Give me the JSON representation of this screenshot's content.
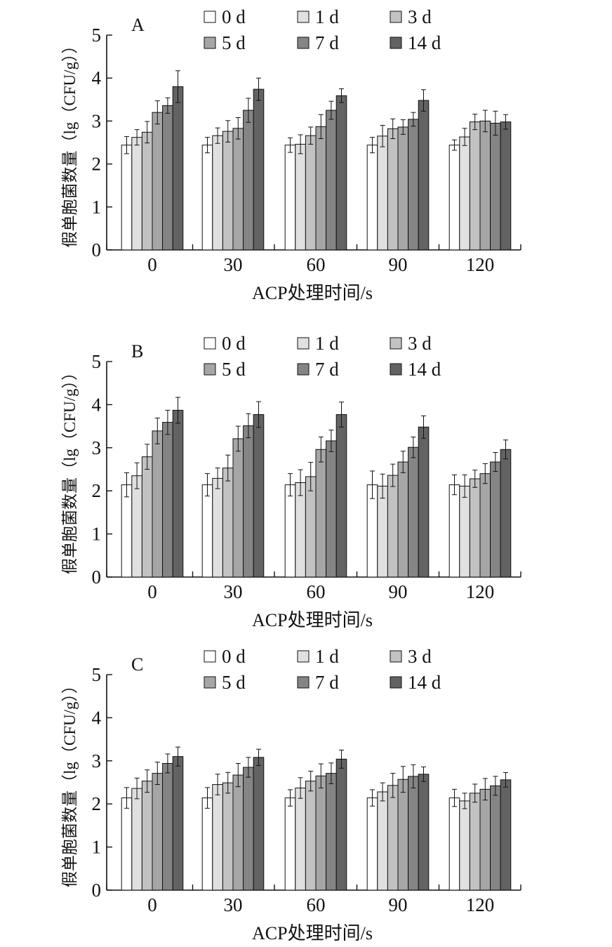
{
  "figure": {
    "xlabel": "ACP处理时间/s",
    "ylabel": "假单胞菌数量（lg（CFU/g））",
    "legend": [
      "0 d",
      "1 d",
      "3 d",
      "5 d",
      "7 d",
      "14 d"
    ],
    "bar_colors": [
      "#ffffff",
      "#e0e0e0",
      "#c2c2c2",
      "#a6a6a6",
      "#858585",
      "#636363"
    ]
  },
  "chart_data": [
    {
      "type": "bar",
      "panel_label": "A",
      "categories": [
        "0",
        "30",
        "60",
        "90",
        "120"
      ],
      "xlabel": "ACP处理时间/s",
      "ylabel": "假单胞菌数量（lg（CFU/g））",
      "ylim": [
        0,
        5
      ],
      "yticks": [
        0,
        1,
        2,
        3,
        4,
        5
      ],
      "legend_position": "top",
      "series": [
        {
          "name": "0 d",
          "values": [
            2.44,
            2.44,
            2.44,
            2.44,
            2.44
          ],
          "errors": [
            0.2,
            0.18,
            0.17,
            0.18,
            0.12
          ]
        },
        {
          "name": "1 d",
          "values": [
            2.62,
            2.66,
            2.46,
            2.65,
            2.63
          ],
          "errors": [
            0.18,
            0.18,
            0.22,
            0.25,
            0.2
          ]
        },
        {
          "name": "3 d",
          "values": [
            2.74,
            2.76,
            2.66,
            2.82,
            2.98
          ],
          "errors": [
            0.25,
            0.25,
            0.2,
            0.23,
            0.18
          ]
        },
        {
          "name": "5 d",
          "values": [
            3.2,
            2.83,
            2.87,
            2.86,
            3.0
          ],
          "errors": [
            0.27,
            0.25,
            0.28,
            0.17,
            0.25
          ]
        },
        {
          "name": "7 d",
          "values": [
            3.36,
            3.25,
            3.25,
            3.04,
            2.95
          ],
          "errors": [
            0.18,
            0.28,
            0.21,
            0.16,
            0.28
          ]
        },
        {
          "name": "14 d",
          "values": [
            3.8,
            3.74,
            3.59,
            3.48,
            2.98
          ],
          "errors": [
            0.37,
            0.26,
            0.16,
            0.25,
            0.17
          ]
        }
      ]
    },
    {
      "type": "bar",
      "panel_label": "B",
      "categories": [
        "0",
        "30",
        "60",
        "90",
        "120"
      ],
      "xlabel": "ACP处理时间/s",
      "ylabel": "假单胞菌数量（lg（CFU/g））",
      "ylim": [
        0,
        5
      ],
      "yticks": [
        0,
        1,
        2,
        3,
        4,
        5
      ],
      "legend_position": "top",
      "series": [
        {
          "name": "0 d",
          "values": [
            2.14,
            2.14,
            2.14,
            2.14,
            2.14
          ],
          "errors": [
            0.28,
            0.26,
            0.26,
            0.32,
            0.23
          ]
        },
        {
          "name": "1 d",
          "values": [
            2.35,
            2.29,
            2.19,
            2.11,
            2.11
          ],
          "errors": [
            0.3,
            0.24,
            0.3,
            0.28,
            0.26
          ]
        },
        {
          "name": "3 d",
          "values": [
            2.79,
            2.53,
            2.33,
            2.36,
            2.28
          ],
          "errors": [
            0.29,
            0.3,
            0.33,
            0.26,
            0.2
          ]
        },
        {
          "name": "5 d",
          "values": [
            3.39,
            3.21,
            2.96,
            2.67,
            2.4
          ],
          "errors": [
            0.3,
            0.29,
            0.29,
            0.25,
            0.23
          ]
        },
        {
          "name": "7 d",
          "values": [
            3.59,
            3.51,
            3.16,
            3.01,
            2.67
          ],
          "errors": [
            0.28,
            0.28,
            0.25,
            0.24,
            0.22
          ]
        },
        {
          "name": "14 d",
          "values": [
            3.87,
            3.77,
            3.77,
            3.48,
            2.96
          ],
          "errors": [
            0.3,
            0.3,
            0.29,
            0.26,
            0.22
          ]
        }
      ]
    },
    {
      "type": "bar",
      "panel_label": "C",
      "categories": [
        "0",
        "30",
        "60",
        "90",
        "120"
      ],
      "xlabel": "ACP处理时间/s",
      "ylabel": "假单胞菌数量（lg（CFU/g））",
      "ylim": [
        0,
        5
      ],
      "yticks": [
        0,
        1,
        2,
        3,
        4,
        5
      ],
      "legend_position": "top",
      "series": [
        {
          "name": "0 d",
          "values": [
            2.14,
            2.14,
            2.14,
            2.14,
            2.14
          ],
          "errors": [
            0.24,
            0.24,
            0.19,
            0.19,
            0.2
          ]
        },
        {
          "name": "1 d",
          "values": [
            2.36,
            2.45,
            2.37,
            2.28,
            2.07
          ],
          "errors": [
            0.24,
            0.24,
            0.24,
            0.21,
            0.18
          ]
        },
        {
          "name": "3 d",
          "values": [
            2.53,
            2.49,
            2.53,
            2.43,
            2.25
          ],
          "errors": [
            0.26,
            0.24,
            0.23,
            0.28,
            0.21
          ]
        },
        {
          "name": "5 d",
          "values": [
            2.71,
            2.67,
            2.65,
            2.57,
            2.34
          ],
          "errors": [
            0.26,
            0.27,
            0.28,
            0.3,
            0.25
          ]
        },
        {
          "name": "7 d",
          "values": [
            2.94,
            2.85,
            2.71,
            2.64,
            2.42
          ],
          "errors": [
            0.22,
            0.23,
            0.24,
            0.27,
            0.22
          ]
        },
        {
          "name": "14 d",
          "values": [
            3.1,
            3.08,
            3.04,
            2.69,
            2.56
          ],
          "errors": [
            0.22,
            0.19,
            0.21,
            0.17,
            0.17
          ]
        }
      ]
    }
  ]
}
